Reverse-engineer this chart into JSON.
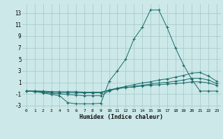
{
  "background_color": "#cce8e8",
  "grid_color": "#aacccc",
  "line_color": "#1a6b6b",
  "xlabel": "Humidex (Indice chaleur)",
  "xlim": [
    -0.5,
    23.5
  ],
  "ylim": [
    -3.5,
    14.5
  ],
  "xticks": [
    0,
    1,
    2,
    3,
    4,
    5,
    6,
    7,
    8,
    9,
    10,
    11,
    12,
    13,
    14,
    15,
    16,
    17,
    18,
    19,
    20,
    21,
    22,
    23
  ],
  "yticks": [
    -3,
    -1,
    1,
    3,
    5,
    7,
    9,
    11,
    13
  ],
  "line1_x": [
    0,
    1,
    2,
    3,
    4,
    5,
    6,
    7,
    8,
    9,
    10,
    11,
    12,
    13,
    14,
    15,
    16,
    17,
    18,
    19,
    20,
    21,
    22,
    23
  ],
  "line1_y": [
    -0.5,
    -0.6,
    -0.8,
    -1.1,
    -1.3,
    -2.5,
    -2.7,
    -2.7,
    -2.7,
    -2.6,
    1.2,
    3.0,
    5.0,
    8.5,
    10.5,
    13.5,
    13.5,
    10.5,
    7.0,
    4.0,
    1.5,
    -0.5,
    -0.5,
    -0.5
  ],
  "line2_x": [
    0,
    1,
    2,
    3,
    4,
    5,
    6,
    7,
    8,
    9,
    10,
    11,
    12,
    13,
    14,
    15,
    16,
    17,
    18,
    19,
    20,
    21,
    22,
    23
  ],
  "line2_y": [
    -0.5,
    -0.6,
    -0.7,
    -0.9,
    -1.0,
    -1.1,
    -1.2,
    -1.3,
    -1.3,
    -1.3,
    -0.5,
    0.0,
    0.3,
    0.6,
    0.9,
    1.1,
    1.4,
    1.6,
    1.9,
    2.2,
    2.6,
    2.7,
    2.1,
    1.2
  ],
  "line3_x": [
    0,
    1,
    2,
    3,
    4,
    5,
    6,
    7,
    8,
    9,
    10,
    11,
    12,
    13,
    14,
    15,
    16,
    17,
    18,
    19,
    20,
    21,
    22,
    23
  ],
  "line3_y": [
    -0.5,
    -0.5,
    -0.6,
    -0.7,
    -0.8,
    -0.8,
    -0.8,
    -0.8,
    -0.8,
    -0.8,
    -0.4,
    -0.1,
    0.1,
    0.3,
    0.5,
    0.7,
    0.9,
    1.0,
    1.2,
    1.4,
    1.7,
    1.7,
    1.4,
    0.8
  ],
  "line4_x": [
    0,
    1,
    2,
    3,
    4,
    5,
    6,
    7,
    8,
    9,
    10,
    11,
    12,
    13,
    14,
    15,
    16,
    17,
    18,
    19,
    20,
    21,
    22,
    23
  ],
  "line4_y": [
    -0.5,
    -0.5,
    -0.5,
    -0.6,
    -0.6,
    -0.6,
    -0.6,
    -0.7,
    -0.7,
    -0.7,
    -0.3,
    0.0,
    0.1,
    0.2,
    0.4,
    0.5,
    0.6,
    0.7,
    0.8,
    0.9,
    1.1,
    1.1,
    0.9,
    0.5
  ]
}
